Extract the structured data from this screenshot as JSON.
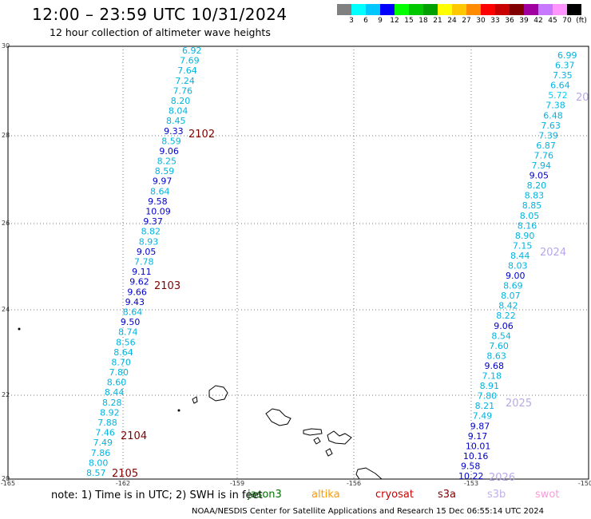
{
  "title": "12:00 – 23:59 UTC 10/31/2024",
  "subtitle": "12 hour collection of altimeter wave heights",
  "colorbar": {
    "colors": [
      "#808080",
      "#00ffff",
      "#00c8ff",
      "#0000ff",
      "#00ff00",
      "#00c800",
      "#00a000",
      "#ffff00",
      "#ffc800",
      "#ff8c00",
      "#ff0000",
      "#c80000",
      "#800000",
      "#a000a0",
      "#c878ff",
      "#ff96ff",
      "#000000"
    ],
    "labels": [
      "3",
      "6",
      "9",
      "12",
      "15",
      "18",
      "21",
      "24",
      "27",
      "30",
      "33",
      "36",
      "39",
      "42",
      "45",
      "70",
      "(ft)"
    ]
  },
  "axes": {
    "y_ticks": [
      "30",
      "28",
      "26",
      "24",
      "22",
      "20"
    ],
    "x_ticks": [
      "-165",
      "-162",
      "-159",
      "-156",
      "-153",
      "-150"
    ]
  },
  "tracks": [
    {
      "values": [
        "6.92",
        "7.69",
        "7.64",
        "7.24",
        "7.76",
        "8.20",
        "8.04",
        "8.45",
        "9.33",
        "8.59",
        "9.06",
        "8.25",
        "8.59",
        "9.97",
        "8.64",
        "9.58",
        "10.09",
        "9.37",
        "8.82",
        "8.93",
        "9.05",
        "7.78",
        "9.11",
        "9.62",
        "9.66",
        "9.43",
        "8.64",
        "9.50",
        "8.74",
        "8.56",
        "8.64",
        "8.70",
        "7.80",
        "8.60",
        "8.44",
        "8.28",
        "8.92",
        "7.88",
        "7.46",
        "7.49",
        "7.86",
        "8.00",
        "8.57"
      ]
    },
    {
      "values": [
        "6.99",
        "6.37",
        "7.35",
        "6.64",
        "5.72",
        "7.38",
        "6.48",
        "7.63",
        "7.39",
        "6.87",
        "7.76",
        "7.94",
        "9.05",
        "8.20",
        "8.83",
        "8.85",
        "8.05",
        "8.16",
        "8.90",
        "7.15",
        "8.44",
        "8.03",
        "9.00",
        "8.69",
        "8.07",
        "8.42",
        "8.22",
        "9.06",
        "8.54",
        "7.60",
        "8.63",
        "9.68",
        "7.18",
        "8.91",
        "7.80",
        "8.21",
        "7.49",
        "9.87",
        "9.17",
        "10.01",
        "10.16",
        "9.58",
        "10.22"
      ]
    }
  ],
  "time_labels": [
    {
      "text": "2102",
      "color": "#800000"
    },
    {
      "text": "2103",
      "color": "#800000"
    },
    {
      "text": "2104",
      "color": "#800000"
    },
    {
      "text": "2105",
      "color": "#800000"
    },
    {
      "text": "20",
      "color": "#b8a8e8"
    },
    {
      "text": "2024",
      "color": "#b8a8e8"
    },
    {
      "text": "2025",
      "color": "#b8a8e8"
    },
    {
      "text": "2026",
      "color": "#b8a8e8"
    }
  ],
  "note": {
    "text": "note: 1) Time is in UTC; 2) SWH is in feet",
    "satellites": [
      {
        "name": "jason3",
        "color": "#007000"
      },
      {
        "name": "altika",
        "color": "#ff9900"
      },
      {
        "name": "cryosat",
        "color": "#cc0000"
      },
      {
        "name": "s3a",
        "color": "#800000"
      },
      {
        "name": "s3b",
        "color": "#c0b0f0"
      },
      {
        "name": "swot",
        "color": "#ff99dd"
      }
    ]
  },
  "credit": "NOAA/NESDIS Center for Satellite Applications and Research    15 Dec 06:55:14 UTC 2024"
}
